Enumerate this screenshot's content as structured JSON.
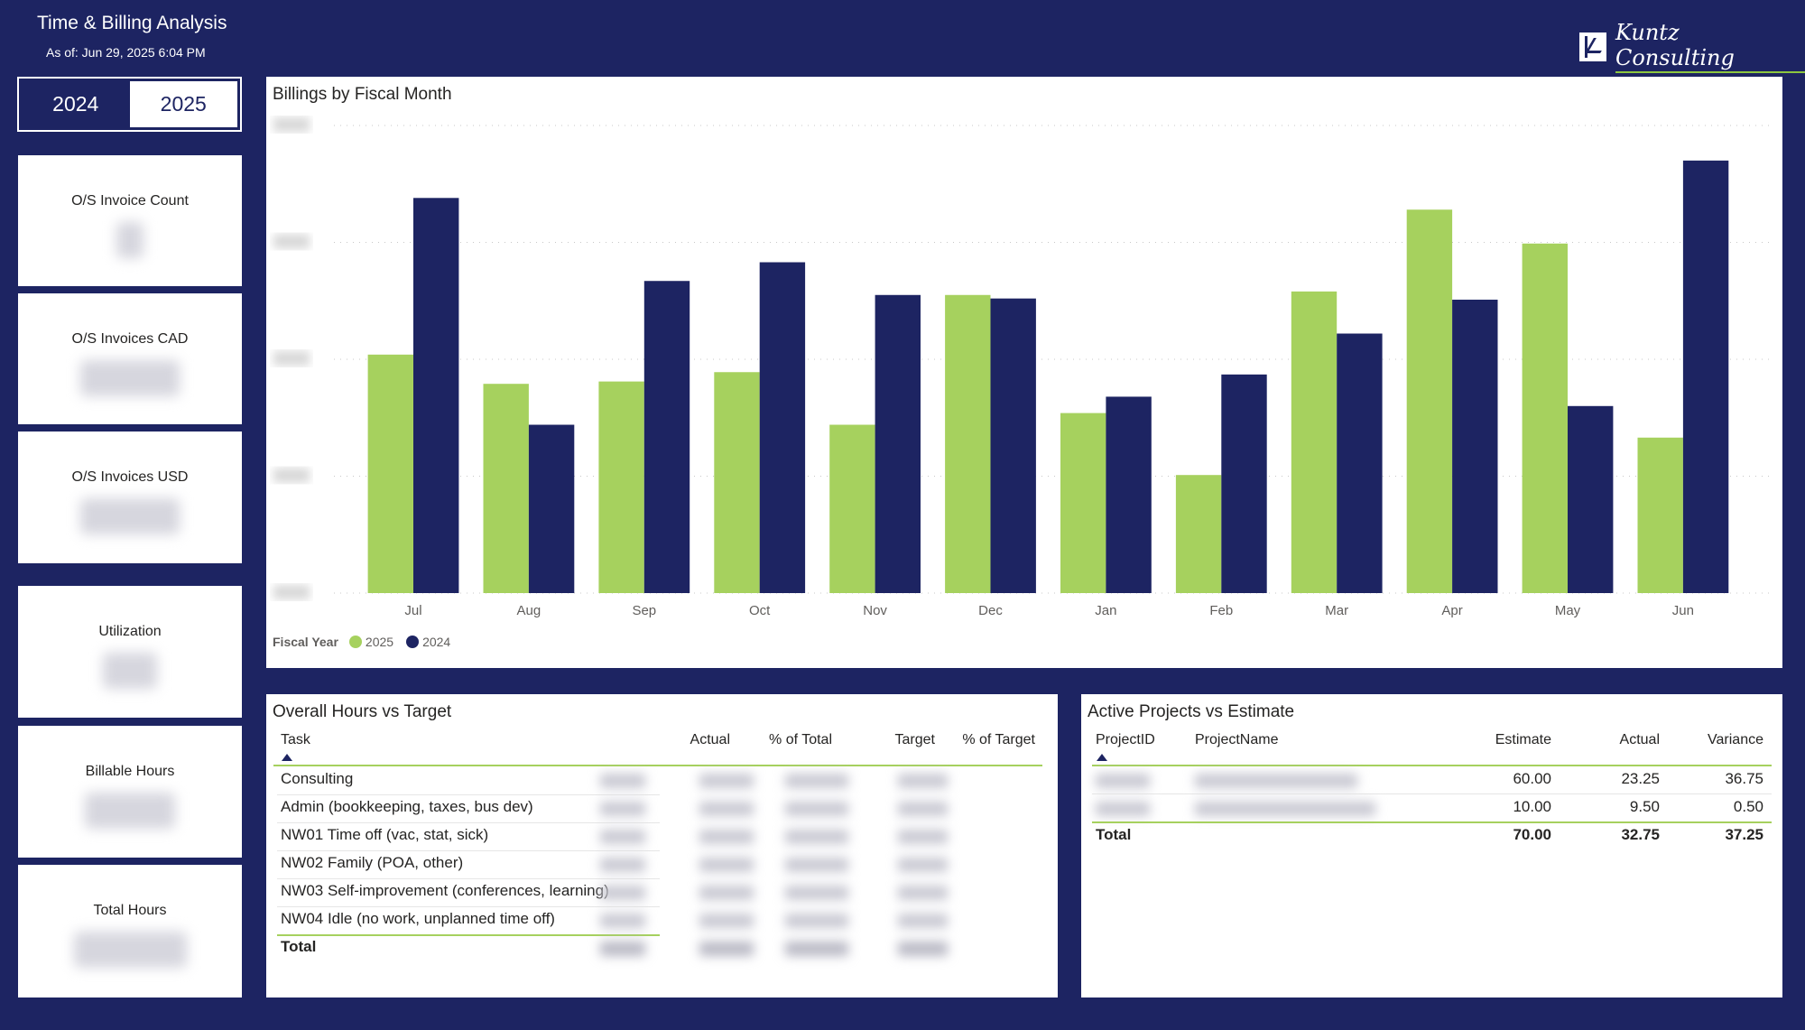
{
  "header": {
    "title": "Time & Billing Analysis",
    "as_of": "As of: Jun 29, 2025 6:04 PM",
    "logo_text": "Kuntz Consulting"
  },
  "slicer": {
    "options": [
      "2024",
      "2025"
    ],
    "selected": "2025"
  },
  "cards": [
    {
      "label": "O/S Invoice Count"
    },
    {
      "label": "O/S Invoices CAD"
    },
    {
      "label": "O/S Invoices USD"
    },
    {
      "label": "Utilization"
    },
    {
      "label": "Billable Hours"
    },
    {
      "label": "Total Hours"
    }
  ],
  "colors": {
    "background": "#1d2462",
    "series_2025": "#a6d15e",
    "series_2024": "#1d2462",
    "accent_line": "#a6d15e"
  },
  "chart_data": {
    "type": "bar",
    "title": "Billings by Fiscal Month",
    "categories": [
      "Jul",
      "Aug",
      "Sep",
      "Oct",
      "Nov",
      "Dec",
      "Jan",
      "Feb",
      "Mar",
      "Apr",
      "May",
      "Jun"
    ],
    "series": [
      {
        "name": "2025",
        "color": "#a6d15e",
        "values": [
          2.04,
          1.79,
          1.81,
          1.89,
          1.44,
          2.55,
          1.54,
          1.01,
          2.58,
          3.28,
          2.99,
          1.33
        ]
      },
      {
        "name": "2024",
        "color": "#1d2462",
        "values": [
          3.38,
          1.44,
          2.67,
          2.83,
          2.55,
          2.52,
          1.68,
          1.87,
          2.22,
          2.51,
          1.6,
          3.7
        ]
      }
    ],
    "ylim": [
      0,
      4
    ],
    "y_tick_labels_obscured": true,
    "grid": true,
    "legend_title": "Fiscal Year",
    "legend_position": "bottom-left"
  },
  "hours_table": {
    "title": "Overall Hours vs Target",
    "columns": [
      "Task",
      "Actual",
      "% of Total",
      "Target",
      "% of Target"
    ],
    "rows": [
      "Consulting",
      "Admin (bookkeeping, taxes, bus dev)",
      "NW01 Time off (vac, stat, sick)",
      "NW02 Family (POA, other)",
      "NW03 Self-improvement (conferences, learning)",
      "NW04 Idle (no work, unplanned time off)"
    ],
    "total_label": "Total"
  },
  "projects_table": {
    "title": "Active Projects vs Estimate",
    "columns": [
      "ProjectID",
      "ProjectName",
      "Estimate",
      "Actual",
      "Variance"
    ],
    "rows": [
      {
        "estimate": "60.00",
        "actual": "23.25",
        "variance": "36.75"
      },
      {
        "estimate": "10.00",
        "actual": "9.50",
        "variance": "0.50"
      }
    ],
    "total": {
      "label": "Total",
      "estimate": "70.00",
      "actual": "32.75",
      "variance": "37.25"
    }
  }
}
